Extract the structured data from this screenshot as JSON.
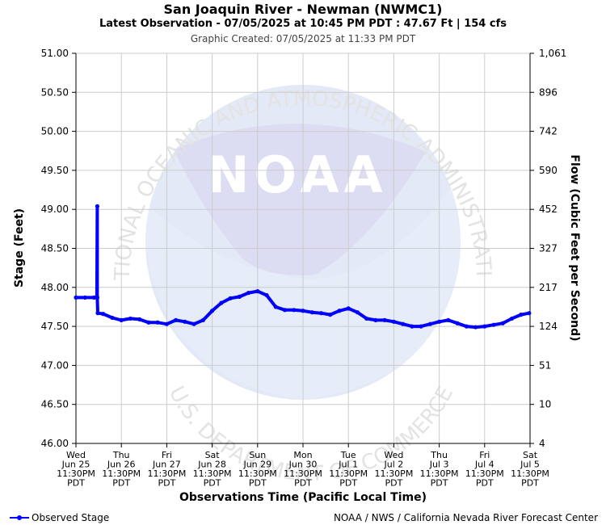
{
  "header": {
    "title": "San Joaquin River - Newman (NWMC1)",
    "subtitle": "Latest Observation - 07/05/2025 at 10:45 PM PDT : 47.67 Ft | 154 cfs",
    "created": "Graphic Created: 07/05/2025 at 11:33 PM PDT"
  },
  "watermark": {
    "logo_text": "NOAA",
    "ring_top": "NATIONAL OCEANIC AND ATMOSPHERIC ADMINISTRATION",
    "ring_bottom": "U.S. DEPARTMENT OF COMMERCE"
  },
  "legend": {
    "label": "Observed Stage"
  },
  "credit": "NOAA / NWS / California Nevada River Forecast Center",
  "colors": {
    "series": "#0000ff",
    "grid": "#cccccc",
    "watermark": "#e8ebf8"
  },
  "chart_data": {
    "type": "line",
    "title": "San Joaquin River - Newman (NWMC1)",
    "xlabel": "Observations Time (Pacific Local Time)",
    "ylabel": "Stage (Feet)",
    "y2label": "Flow (Cubic Feet per Second)",
    "ylim": [
      46.0,
      51.0
    ],
    "xlim_days": [
      0,
      10
    ],
    "grid": true,
    "legend_position": "bottom-left",
    "y_ticks": [
      "46.00",
      "46.50",
      "47.00",
      "47.50",
      "48.00",
      "48.50",
      "49.00",
      "49.50",
      "50.00",
      "50.50",
      "51.00"
    ],
    "y2_ticks": [
      "4",
      "10",
      "51",
      "124",
      "217",
      "327",
      "452",
      "590",
      "742",
      "896",
      "1,061"
    ],
    "x_ticks": [
      [
        "Wed",
        "Jun 25",
        "11:30PM",
        "PDT"
      ],
      [
        "Thu",
        "Jun 26",
        "11:30PM",
        "PDT"
      ],
      [
        "Fri",
        "Jun 27",
        "11:30PM",
        "PDT"
      ],
      [
        "Sat",
        "Jun 28",
        "11:30PM",
        "PDT"
      ],
      [
        "Sun",
        "Jun 29",
        "11:30PM",
        "PDT"
      ],
      [
        "Mon",
        "Jun 30",
        "11:30PM",
        "PDT"
      ],
      [
        "Tue",
        "Jul 1",
        "11:30PM",
        "PDT"
      ],
      [
        "Wed",
        "Jul 2",
        "11:30PM",
        "PDT"
      ],
      [
        "Thu",
        "Jul 3",
        "11:30PM",
        "PDT"
      ],
      [
        "Fri",
        "Jul 4",
        "11:30PM",
        "PDT"
      ],
      [
        "Sat",
        "Jul 5",
        "11:30PM",
        "PDT"
      ]
    ],
    "series": [
      {
        "name": "Observed Stage",
        "x_days": [
          0.0,
          0.2,
          0.4,
          0.46,
          0.47,
          0.47,
          0.48,
          0.6,
          0.8,
          1.0,
          1.2,
          1.4,
          1.6,
          1.8,
          2.0,
          2.2,
          2.4,
          2.6,
          2.8,
          3.0,
          3.2,
          3.4,
          3.6,
          3.8,
          4.0,
          4.2,
          4.4,
          4.6,
          4.8,
          5.0,
          5.2,
          5.4,
          5.6,
          5.8,
          6.0,
          6.2,
          6.4,
          6.6,
          6.8,
          7.0,
          7.2,
          7.4,
          7.6,
          7.8,
          8.0,
          8.2,
          8.4,
          8.6,
          8.8,
          9.0,
          9.2,
          9.4,
          9.6,
          9.8,
          9.98
        ],
        "stage_ft": [
          47.87,
          47.87,
          47.87,
          47.87,
          49.04,
          47.87,
          47.67,
          47.66,
          47.61,
          47.58,
          47.6,
          47.59,
          47.55,
          47.55,
          47.53,
          47.58,
          47.56,
          47.53,
          47.58,
          47.7,
          47.8,
          47.86,
          47.88,
          47.93,
          47.95,
          47.9,
          47.75,
          47.71,
          47.71,
          47.7,
          47.68,
          47.67,
          47.65,
          47.7,
          47.73,
          47.68,
          47.6,
          47.58,
          47.58,
          47.56,
          47.53,
          47.5,
          47.5,
          47.53,
          47.56,
          47.58,
          47.54,
          47.5,
          47.49,
          47.5,
          47.52,
          47.54,
          47.6,
          47.65,
          47.67
        ]
      }
    ]
  }
}
